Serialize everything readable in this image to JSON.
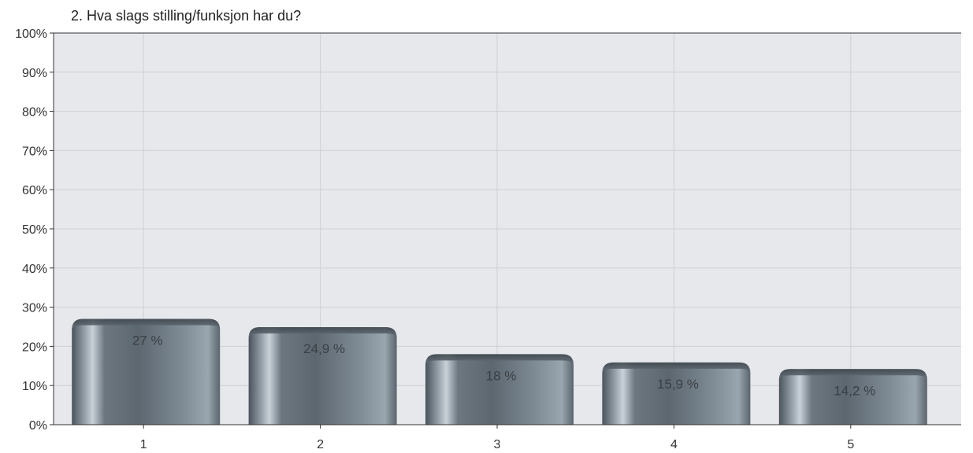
{
  "chart_data": {
    "type": "bar",
    "title": "2. Hva slags stilling/funksjon har du?",
    "xlabel": "",
    "ylabel": "",
    "categories": [
      "1",
      "2",
      "3",
      "4",
      "5"
    ],
    "values": [
      27,
      24.9,
      18,
      15.9,
      14.2
    ],
    "value_labels": [
      "27 %",
      "24,9 %",
      "18 %",
      "15,9 %",
      "14,2 %"
    ],
    "ylim": [
      0,
      100
    ],
    "y_ticks": [
      0,
      10,
      20,
      30,
      40,
      50,
      60,
      70,
      80,
      90,
      100
    ],
    "y_tick_labels": [
      "0%",
      "10%",
      "20%",
      "30%",
      "40%",
      "50%",
      "60%",
      "70%",
      "80%",
      "90%",
      "100%"
    ],
    "grid": true,
    "legend": "none",
    "colors": {
      "plot_background": "#e6e8ec",
      "grid": "#cdd0d6",
      "axis": "#333333",
      "bar_dark": "#4a535b",
      "bar_mid": "#7c8892",
      "bar_light": "#c9d1d8"
    }
  }
}
